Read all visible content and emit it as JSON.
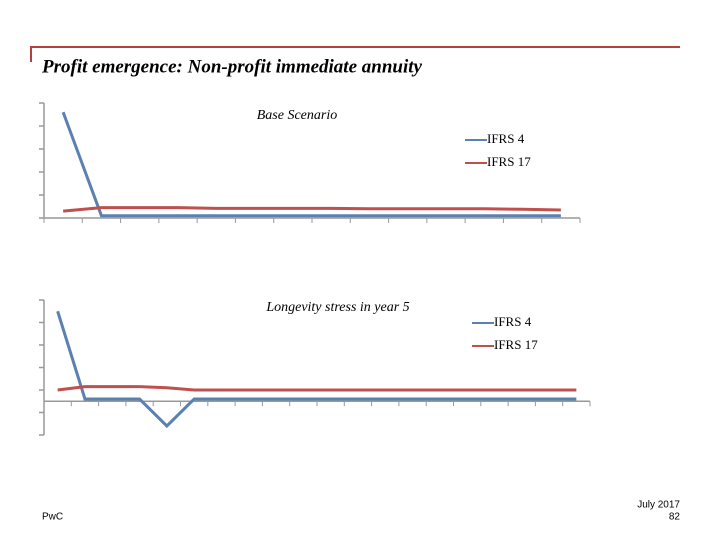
{
  "header": {
    "title": "Profit emergence: Non-profit immediate annuity"
  },
  "footer": {
    "brand": "PwC",
    "date": "July 2017",
    "page": "82"
  },
  "chart_data": [
    {
      "type": "line",
      "title": "Base Scenario",
      "categories": [
        null,
        null,
        null,
        null,
        null,
        null,
        null,
        null,
        null,
        null,
        null,
        null,
        null,
        null
      ],
      "series": [
        {
          "name": "IFRS 4",
          "color": "#5b80b2",
          "values": [
            4.6,
            0.1,
            0.1,
            0.1,
            0.1,
            0.1,
            0.1,
            0.1,
            0.1,
            0.1,
            0.1,
            0.1,
            0.1,
            0.1
          ]
        },
        {
          "name": "IFRS 17",
          "color": "#c0504d",
          "values": [
            0.3,
            0.45,
            0.45,
            0.45,
            0.42,
            0.42,
            0.42,
            0.42,
            0.4,
            0.4,
            0.4,
            0.4,
            0.38,
            0.35
          ]
        }
      ],
      "ylim": [
        0,
        5
      ],
      "yticks": [
        0,
        1,
        2,
        3,
        4,
        5
      ]
    },
    {
      "type": "line",
      "title": "Longevity stress in year 5",
      "categories": [
        null,
        null,
        null,
        null,
        null,
        null,
        null,
        null,
        null,
        null,
        null,
        null,
        null,
        null,
        null,
        null,
        null,
        null,
        null,
        null
      ],
      "series": [
        {
          "name": "IFRS 4",
          "color": "#5b80b2",
          "values": [
            4.0,
            0.1,
            0.1,
            0.1,
            -1.1,
            0.1,
            0.1,
            0.1,
            0.1,
            0.1,
            0.1,
            0.1,
            0.1,
            0.1,
            0.1,
            0.1,
            0.1,
            0.1,
            0.1,
            0.1
          ]
        },
        {
          "name": "IFRS 17",
          "color": "#c0504d",
          "values": [
            0.5,
            0.65,
            0.65,
            0.65,
            0.6,
            0.5,
            0.5,
            0.5,
            0.5,
            0.5,
            0.5,
            0.5,
            0.5,
            0.5,
            0.5,
            0.5,
            0.5,
            0.5,
            0.5,
            0.5
          ]
        }
      ],
      "ylim": [
        -1.5,
        4.5
      ],
      "yticks": [
        -1.5,
        -0.5,
        0.5,
        1.5,
        2.5,
        3.5,
        4.5
      ]
    }
  ]
}
